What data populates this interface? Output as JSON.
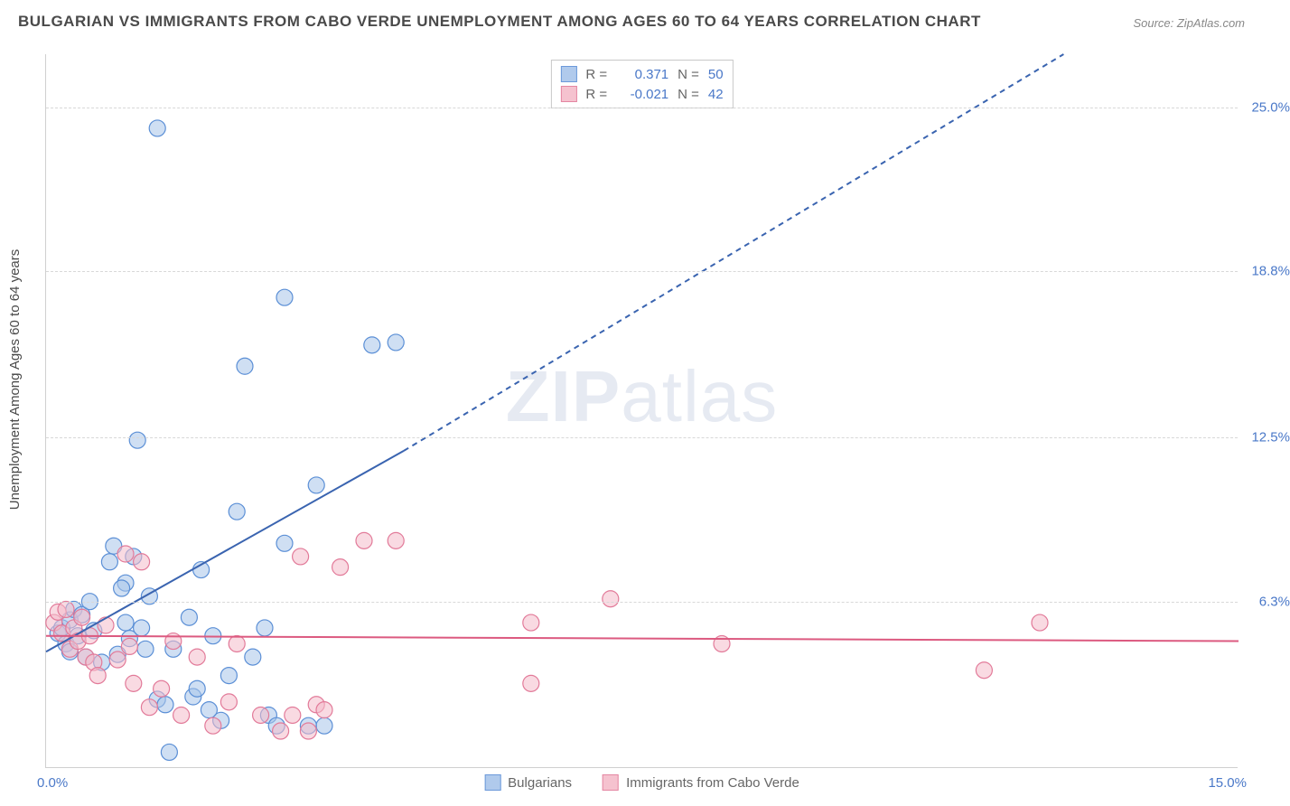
{
  "title": "BULGARIAN VS IMMIGRANTS FROM CABO VERDE UNEMPLOYMENT AMONG AGES 60 TO 64 YEARS CORRELATION CHART",
  "source": "Source: ZipAtlas.com",
  "watermark_bold": "ZIP",
  "watermark_light": "atlas",
  "y_axis_label": "Unemployment Among Ages 60 to 64 years",
  "chart": {
    "type": "scatter",
    "background_color": "#ffffff",
    "grid_color": "#d8d8d8",
    "grid_dash": "4 4",
    "axis_color": "#d0d0d0",
    "xlim": [
      0,
      15
    ],
    "ylim": [
      0,
      27
    ],
    "y_ticks": [
      {
        "value": 6.3,
        "label": "6.3%",
        "color": "#4a78c8"
      },
      {
        "value": 12.5,
        "label": "12.5%",
        "color": "#4a78c8"
      },
      {
        "value": 18.8,
        "label": "18.8%",
        "color": "#4a78c8"
      },
      {
        "value": 25.0,
        "label": "25.0%",
        "color": "#4a78c8"
      }
    ],
    "x_ticks": {
      "origin_label": "0.0%",
      "max_label": "15.0%",
      "color": "#4a78c8"
    },
    "series": [
      {
        "name": "Bulgarians",
        "fill_color": "#a8c5ea",
        "fill_opacity": 0.55,
        "stroke_color": "#5b8fd6",
        "marker_radius": 9,
        "R": "0.371",
        "N": "50",
        "trend": {
          "solid": {
            "x1": 0,
            "y1": 4.4,
            "x2": 4.5,
            "y2": 12.0
          },
          "dashed": {
            "x1": 4.5,
            "y1": 12.0,
            "x2": 12.8,
            "y2": 27.0
          },
          "color": "#3a64b0",
          "width": 2,
          "dash": "6 5"
        },
        "points": [
          {
            "x": 0.15,
            "y": 5.1
          },
          {
            "x": 0.2,
            "y": 5.3
          },
          {
            "x": 0.25,
            "y": 4.7
          },
          {
            "x": 0.3,
            "y": 5.6
          },
          {
            "x": 0.3,
            "y": 4.4
          },
          {
            "x": 0.35,
            "y": 6.0
          },
          {
            "x": 0.4,
            "y": 5.0
          },
          {
            "x": 0.45,
            "y": 5.8
          },
          {
            "x": 0.5,
            "y": 4.2
          },
          {
            "x": 0.55,
            "y": 6.3
          },
          {
            "x": 0.6,
            "y": 5.2
          },
          {
            "x": 0.7,
            "y": 4.0
          },
          {
            "x": 0.8,
            "y": 7.8
          },
          {
            "x": 0.85,
            "y": 8.4
          },
          {
            "x": 0.9,
            "y": 4.3
          },
          {
            "x": 1.0,
            "y": 5.5
          },
          {
            "x": 1.0,
            "y": 7.0
          },
          {
            "x": 1.05,
            "y": 4.9
          },
          {
            "x": 1.1,
            "y": 8.0
          },
          {
            "x": 1.15,
            "y": 12.4
          },
          {
            "x": 1.2,
            "y": 5.3
          },
          {
            "x": 1.25,
            "y": 4.5
          },
          {
            "x": 1.3,
            "y": 6.5
          },
          {
            "x": 1.4,
            "y": 2.6
          },
          {
            "x": 1.4,
            "y": 24.2
          },
          {
            "x": 1.5,
            "y": 2.4
          },
          {
            "x": 1.55,
            "y": 0.6
          },
          {
            "x": 1.6,
            "y": 4.5
          },
          {
            "x": 1.8,
            "y": 5.7
          },
          {
            "x": 1.85,
            "y": 2.7
          },
          {
            "x": 1.9,
            "y": 3.0
          },
          {
            "x": 1.95,
            "y": 7.5
          },
          {
            "x": 2.1,
            "y": 5.0
          },
          {
            "x": 2.2,
            "y": 1.8
          },
          {
            "x": 2.3,
            "y": 3.5
          },
          {
            "x": 2.4,
            "y": 9.7
          },
          {
            "x": 2.5,
            "y": 15.2
          },
          {
            "x": 2.6,
            "y": 4.2
          },
          {
            "x": 2.75,
            "y": 5.3
          },
          {
            "x": 2.8,
            "y": 2.0
          },
          {
            "x": 2.9,
            "y": 1.6
          },
          {
            "x": 3.0,
            "y": 8.5
          },
          {
            "x": 3.0,
            "y": 17.8
          },
          {
            "x": 3.3,
            "y": 1.6
          },
          {
            "x": 3.4,
            "y": 10.7
          },
          {
            "x": 4.1,
            "y": 16.0
          },
          {
            "x": 4.4,
            "y": 16.1
          },
          {
            "x": 3.5,
            "y": 1.6
          },
          {
            "x": 2.05,
            "y": 2.2
          },
          {
            "x": 0.95,
            "y": 6.8
          }
        ]
      },
      {
        "name": "Immigrants from Cabo Verde",
        "fill_color": "#f4bcca",
        "fill_opacity": 0.55,
        "stroke_color": "#e27a99",
        "marker_radius": 9,
        "R": "-0.021",
        "N": "42",
        "trend": {
          "solid": {
            "x1": 0,
            "y1": 5.0,
            "x2": 15,
            "y2": 4.8
          },
          "dashed": null,
          "color": "#dc5a80",
          "width": 2
        },
        "points": [
          {
            "x": 0.1,
            "y": 5.5
          },
          {
            "x": 0.15,
            "y": 5.9
          },
          {
            "x": 0.2,
            "y": 5.1
          },
          {
            "x": 0.25,
            "y": 6.0
          },
          {
            "x": 0.3,
            "y": 4.5
          },
          {
            "x": 0.35,
            "y": 5.3
          },
          {
            "x": 0.4,
            "y": 4.8
          },
          {
            "x": 0.45,
            "y": 5.7
          },
          {
            "x": 0.5,
            "y": 4.2
          },
          {
            "x": 0.55,
            "y": 5.0
          },
          {
            "x": 0.6,
            "y": 4.0
          },
          {
            "x": 0.65,
            "y": 3.5
          },
          {
            "x": 0.75,
            "y": 5.4
          },
          {
            "x": 0.9,
            "y": 4.1
          },
          {
            "x": 1.0,
            "y": 8.1
          },
          {
            "x": 1.05,
            "y": 4.6
          },
          {
            "x": 1.1,
            "y": 3.2
          },
          {
            "x": 1.2,
            "y": 7.8
          },
          {
            "x": 1.3,
            "y": 2.3
          },
          {
            "x": 1.45,
            "y": 3.0
          },
          {
            "x": 1.6,
            "y": 4.8
          },
          {
            "x": 1.7,
            "y": 2.0
          },
          {
            "x": 1.9,
            "y": 4.2
          },
          {
            "x": 2.1,
            "y": 1.6
          },
          {
            "x": 2.3,
            "y": 2.5
          },
          {
            "x": 2.4,
            "y": 4.7
          },
          {
            "x": 2.7,
            "y": 2.0
          },
          {
            "x": 2.95,
            "y": 1.4
          },
          {
            "x": 3.1,
            "y": 2.0
          },
          {
            "x": 3.2,
            "y": 8.0
          },
          {
            "x": 3.3,
            "y": 1.4
          },
          {
            "x": 3.4,
            "y": 2.4
          },
          {
            "x": 3.5,
            "y": 2.2
          },
          {
            "x": 3.7,
            "y": 7.6
          },
          {
            "x": 4.0,
            "y": 8.6
          },
          {
            "x": 4.4,
            "y": 8.6
          },
          {
            "x": 6.1,
            "y": 5.5
          },
          {
            "x": 6.1,
            "y": 3.2
          },
          {
            "x": 7.1,
            "y": 6.4
          },
          {
            "x": 8.5,
            "y": 4.7
          },
          {
            "x": 11.8,
            "y": 3.7
          },
          {
            "x": 12.5,
            "y": 5.5
          }
        ]
      }
    ]
  },
  "fontsize": {
    "title": 17,
    "label": 15,
    "tick": 15,
    "legend": 15
  }
}
